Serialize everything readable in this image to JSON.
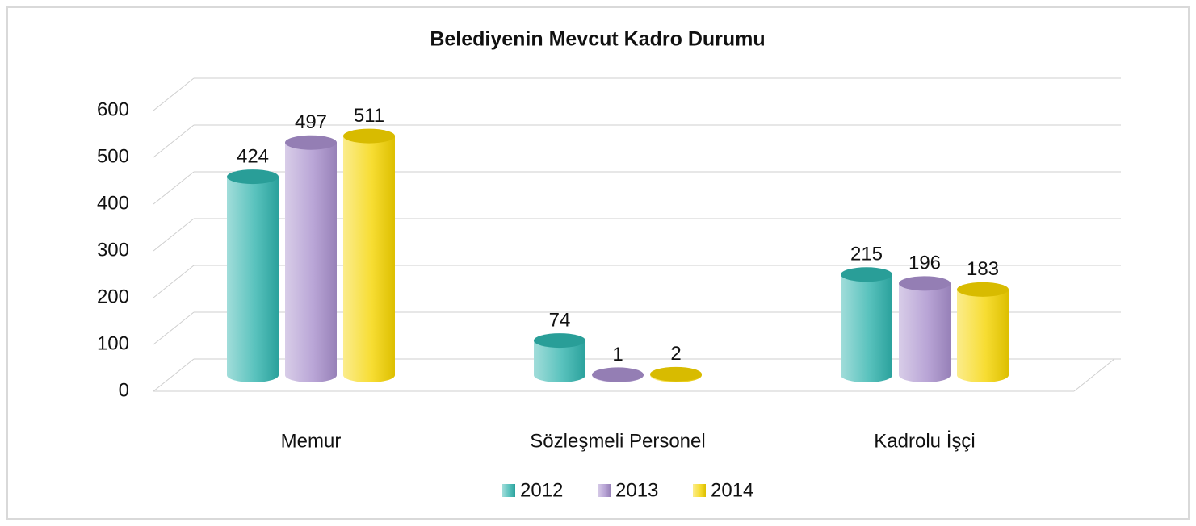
{
  "chart_data": {
    "type": "bar3d",
    "title": "Belediyenin Mevcut Kadro Durumu",
    "categories": [
      "Memur",
      "Sözleşmeli Personel",
      "Kadrolu İşçi"
    ],
    "series": [
      {
        "name": "2012",
        "color": "#2fb3ad",
        "values": [
          424,
          74,
          215
        ]
      },
      {
        "name": "2013",
        "color": "#a88fcc",
        "values": [
          497,
          1,
          196
        ]
      },
      {
        "name": "2014",
        "color": "#f5d400",
        "values": [
          511,
          2,
          183
        ]
      }
    ],
    "ylim": [
      0,
      600
    ],
    "yticks": [
      0,
      100,
      200,
      300,
      400,
      500,
      600
    ],
    "grid": true,
    "legend": "bottom"
  }
}
